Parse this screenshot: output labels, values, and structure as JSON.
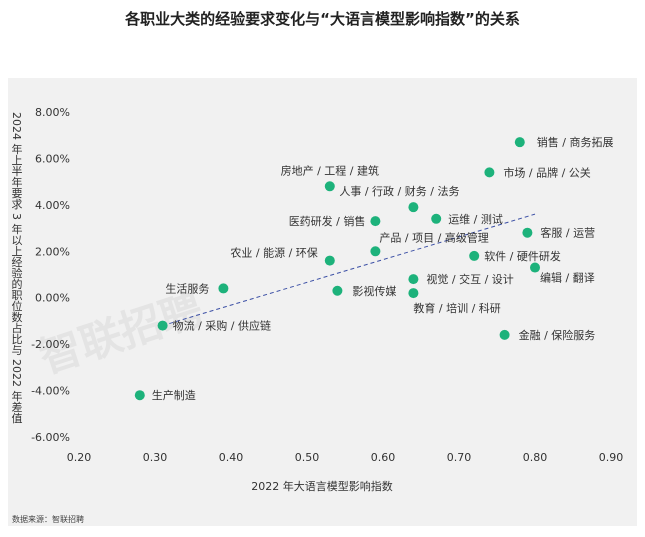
{
  "title": "各职业大类的经验要求变化与“大语言模型影响指数”的关系",
  "source": "数据来源：智联招聘",
  "watermark": "智联招聘",
  "chart_data": {
    "type": "scatter",
    "title": "各职业大类的经验要求变化与“大语言模型影响指数”的关系",
    "xlabel": "2022 年大语言模型影响指数",
    "ylabel": "2024 年上半年要求 3 年以上经验的职位数占比与 2022 年差值",
    "xlim": [
      0.2,
      0.9
    ],
    "ylim": [
      -0.07,
      0.085
    ],
    "xticks": [
      "0.20",
      "0.30",
      "0.40",
      "0.50",
      "0.60",
      "0.70",
      "0.80",
      "0.90"
    ],
    "xtick_values": [
      0.2,
      0.3,
      0.4,
      0.5,
      0.6,
      0.7,
      0.8,
      0.9
    ],
    "yticks": [
      "8.00%",
      "6.00%",
      "4.00%",
      "2.00%",
      "0.00%",
      "-2.00%",
      "-4.00%",
      "-6.00%"
    ],
    "ytick_values": [
      0.08,
      0.06,
      0.04,
      0.02,
      0.0,
      -0.02,
      -0.04,
      -0.06
    ],
    "grid": false,
    "trendline": {
      "style": "dashed",
      "x": [
        0.31,
        0.8
      ],
      "y": [
        -0.012,
        0.036
      ]
    },
    "point_color": "#1db27b",
    "trend_color": "#3b4fa5",
    "points": [
      {
        "label": "销售 / 商务拓展",
        "x": 0.78,
        "y": 0.067
      },
      {
        "label": "市场 / 品牌 / 公关",
        "x": 0.74,
        "y": 0.054
      },
      {
        "label": "房地产 / 工程 / 建筑",
        "x": 0.53,
        "y": 0.048
      },
      {
        "label": "人事 / 行政 / 财务 / 法务",
        "x": 0.64,
        "y": 0.039
      },
      {
        "label": "运维 / 测试",
        "x": 0.67,
        "y": 0.034
      },
      {
        "label": "医药研发 / 销售",
        "x": 0.59,
        "y": 0.033
      },
      {
        "label": "客服 / 运营",
        "x": 0.79,
        "y": 0.028
      },
      {
        "label": "产品 / 项目 / 高级管理",
        "x": 0.59,
        "y": 0.02
      },
      {
        "label": "软件 / 硬件研发",
        "x": 0.72,
        "y": 0.018
      },
      {
        "label": "农业 / 能源 / 环保",
        "x": 0.53,
        "y": 0.016
      },
      {
        "label": "编辑 / 翻译",
        "x": 0.8,
        "y": 0.013
      },
      {
        "label": "生活服务",
        "x": 0.39,
        "y": 0.004
      },
      {
        "label": "视觉 / 交互 / 设计",
        "x": 0.64,
        "y": 0.008
      },
      {
        "label": "影视传媒",
        "x": 0.54,
        "y": 0.003
      },
      {
        "label": "教育 / 培训 / 科研",
        "x": 0.64,
        "y": 0.002
      },
      {
        "label": "物流 / 采购 / 供应链",
        "x": 0.31,
        "y": -0.012
      },
      {
        "label": "金融 / 保险服务",
        "x": 0.76,
        "y": -0.016
      },
      {
        "label": "生产制造",
        "x": 0.28,
        "y": -0.042
      }
    ]
  }
}
